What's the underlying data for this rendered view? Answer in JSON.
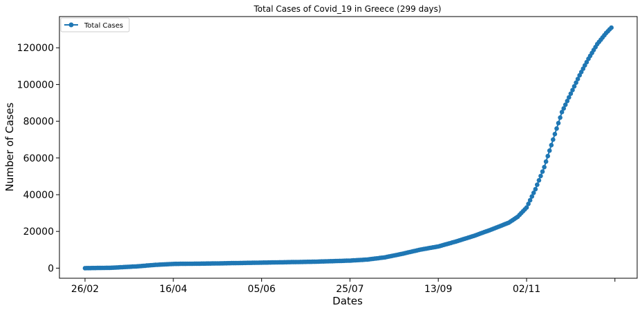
{
  "chart_data": {
    "type": "line",
    "title": "Total Cases of Covid_19 in Greece (299 days)",
    "xlabel": "Dates",
    "ylabel": "Number of Cases",
    "x_tick_labels": [
      "26/02",
      "16/04",
      "05/06",
      "25/07",
      "13/09",
      "02/11",
      ""
    ],
    "y_tick_labels": [
      "0",
      "20000",
      "40000",
      "60000",
      "80000",
      "100000",
      "120000"
    ],
    "y_ticks": [
      0,
      20000,
      40000,
      60000,
      80000,
      100000,
      120000
    ],
    "ylim": [
      -5500,
      137000
    ],
    "days": 299,
    "legend": {
      "position": "top-left",
      "entries": [
        "Total Cases"
      ]
    },
    "grid": false,
    "series": [
      {
        "name": "Total Cases",
        "color": "#1f77b4",
        "marker": "circle",
        "keypoints": [
          {
            "day": 0,
            "value": 0
          },
          {
            "day": 15,
            "value": 200
          },
          {
            "day": 30,
            "value": 1000
          },
          {
            "day": 40,
            "value": 1800
          },
          {
            "day": 50,
            "value": 2300
          },
          {
            "day": 70,
            "value": 2500
          },
          {
            "day": 100,
            "value": 3000
          },
          {
            "day": 130,
            "value": 3500
          },
          {
            "day": 150,
            "value": 4100
          },
          {
            "day": 160,
            "value": 4700
          },
          {
            "day": 170,
            "value": 5900
          },
          {
            "day": 180,
            "value": 7900
          },
          {
            "day": 190,
            "value": 10100
          },
          {
            "day": 200,
            "value": 11800
          },
          {
            "day": 210,
            "value": 14500
          },
          {
            "day": 220,
            "value": 17500
          },
          {
            "day": 230,
            "value": 21000
          },
          {
            "day": 240,
            "value": 24800
          },
          {
            "day": 245,
            "value": 28000
          },
          {
            "day": 250,
            "value": 33000
          },
          {
            "day": 255,
            "value": 43000
          },
          {
            "day": 260,
            "value": 55000
          },
          {
            "day": 265,
            "value": 70000
          },
          {
            "day": 270,
            "value": 85000
          },
          {
            "day": 275,
            "value": 95000
          },
          {
            "day": 280,
            "value": 105000
          },
          {
            "day": 285,
            "value": 114000
          },
          {
            "day": 290,
            "value": 122000
          },
          {
            "day": 295,
            "value": 128000
          },
          {
            "day": 298,
            "value": 131000
          }
        ]
      }
    ]
  }
}
